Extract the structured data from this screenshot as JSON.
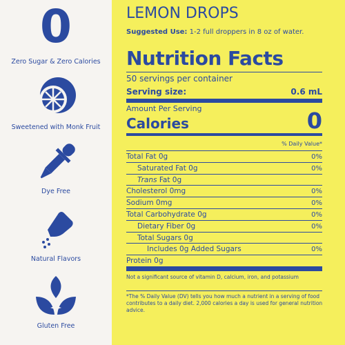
{
  "features": [
    {
      "symbol": "0",
      "label": "Zero Sugar & Zero Calories"
    },
    {
      "label": "Sweetened with Monk Fruit"
    },
    {
      "label": "Dye Free"
    },
    {
      "label": "Natural Flavors"
    },
    {
      "label": "Gluten Free"
    }
  ],
  "product": "LEMON DROPS",
  "suggested_use": {
    "label": "Suggested Use:",
    "text": "1-2 full droppers in 8 oz of water."
  },
  "facts": {
    "title": "Nutrition Facts",
    "servings": "50 servings per container",
    "serving_size": {
      "label": "Serving size:",
      "value": "0.6 mL"
    },
    "amount_per_serving": "Amount Per Serving",
    "calories": {
      "label": "Calories",
      "value": "0"
    },
    "dv_header": "% Daily Value*",
    "rows": [
      {
        "label": "Total Fat 0g",
        "dv": "0%"
      },
      {
        "label": "Saturated Fat 0g",
        "dv": "0%"
      },
      {
        "italic": "Trans",
        "label": "Fat 0g"
      },
      {
        "label": "Cholesterol 0mg",
        "dv": "0%"
      },
      {
        "label": "Sodium 0mg",
        "dv": "0%"
      },
      {
        "label": "Total Carbohydrate 0g",
        "dv": "0%"
      },
      {
        "label": "Dietary Fiber 0g",
        "dv": "0%"
      },
      {
        "label": "Total Sugars 0g"
      },
      {
        "label": "Includes 0g Added Sugars",
        "dv": "0%"
      },
      {
        "label": "Protein 0g"
      }
    ],
    "footnote_1": "Not a significant source of vitamin D, calcium, iron, and potassium",
    "footnote_2": "*The % Daily Value (DV) tells you how much a nutrient in a serving of food contributes to a daily diet. 2,000 calories a day is used for general nutrition advice."
  }
}
